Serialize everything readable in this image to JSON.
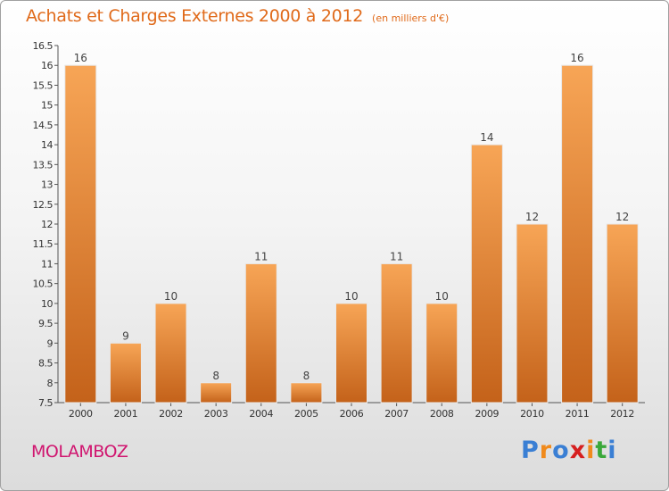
{
  "title": "Achats et Charges Externes 2000 à 2012",
  "unit_label": "(en milliers d'€)",
  "commune": "MOLAMBOZ",
  "logo": {
    "letters": [
      "P",
      "r",
      "o",
      "x",
      "i",
      "t",
      "i"
    ],
    "colors": [
      "#3a7fd4",
      "#f08a1c",
      "#3a7fd4",
      "#d61f1f",
      "#f08a1c",
      "#3aa83a",
      "#3a7fd4"
    ]
  },
  "colors": {
    "bar_light": "#f7a556",
    "bar_dark": "#c4621a",
    "title": "#e06a1a",
    "commune": "#d0156f"
  },
  "chart_data": {
    "type": "bar",
    "title": "Achats et Charges Externes 2000 à 2012",
    "subtitle": "(en milliers d'€)",
    "categories": [
      "2000",
      "2001",
      "2002",
      "2003",
      "2004",
      "2005",
      "2006",
      "2007",
      "2008",
      "2009",
      "2010",
      "2011",
      "2012"
    ],
    "values": [
      16,
      9,
      10,
      8,
      11,
      8,
      10,
      11,
      10,
      14,
      12,
      16,
      12
    ],
    "ylim": [
      7.5,
      16.5
    ],
    "yticks": [
      7.5,
      8,
      8.5,
      9,
      9.5,
      10,
      10.5,
      11,
      11.5,
      12,
      12.5,
      13,
      13.5,
      14,
      14.5,
      15,
      15.5,
      16,
      16.5
    ],
    "grid": false,
    "xlabel": "",
    "ylabel": ""
  }
}
